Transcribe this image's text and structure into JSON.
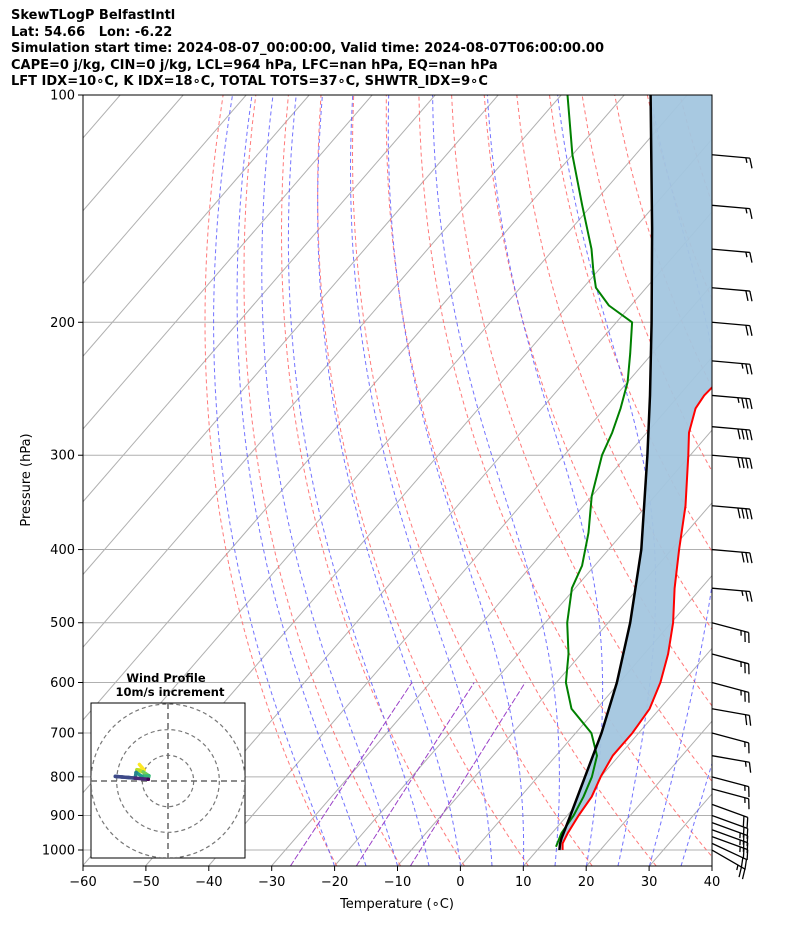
{
  "title_lines": [
    "SkewTLogP BelfastIntl",
    "Lat: 54.66   Lon: -6.22",
    "Simulation start time: 2024-08-07_00:00:00, Valid time: 2024-08-07T06:00:00.00",
    "CAPE=0 j/kg, CIN=0 j/kg, LCL=964 hPa, LFC=nan hPa, EQ=nan hPa",
    "LFT IDX=10∘C, K IDX=18∘C, TOTAL TOTS=37∘C, SHWTR_IDX=9∘C"
  ],
  "chart_data": {
    "type": "line",
    "subtype": "skew-t log-p",
    "xlabel": "Temperature (∘C)",
    "ylabel": "Pressure (hPa)",
    "xlim": [
      -60,
      40
    ],
    "ylim": [
      1050,
      100
    ],
    "yscale": "log",
    "xticks": [
      -60,
      -50,
      -40,
      -30,
      -20,
      -10,
      0,
      10,
      20,
      30,
      40
    ],
    "xtick_labels": [
      "−60",
      "−50",
      "−40",
      "−30",
      "−20",
      "−10",
      "0",
      "10",
      "20",
      "30",
      "40"
    ],
    "yticks": [
      1000,
      900,
      800,
      700,
      600,
      500,
      400,
      300,
      200,
      100
    ],
    "ytick_labels": [
      "1000",
      "900",
      "800",
      "700",
      "600",
      "500",
      "400",
      "300",
      "200",
      "100"
    ],
    "grid": true,
    "colors": {
      "temperature": "#ff0000",
      "dewpoint": "#008000",
      "parcel": "#000000",
      "shade": "#a3c6df",
      "dry_adiabats": "#ff6b6b",
      "moist_adiabats": "#5a5aff",
      "mixing_ratio": "#9b42c8",
      "isotherms": "#b0b0b0"
    },
    "series": [
      {
        "key": "temperature",
        "pressure": [
          1000,
          980,
          950,
          900,
          850,
          800,
          750,
          700,
          650,
          600,
          550,
          500,
          450,
          400,
          350,
          300,
          280,
          260,
          250,
          230,
          210,
          200,
          185,
          170,
          160,
          150,
          140,
          130,
          120,
          112,
          105,
          100
        ],
        "temp": [
          14.0,
          13.1,
          12.5,
          11.8,
          11.3,
          10.0,
          9.0,
          9.0,
          8.4,
          6.5,
          3.8,
          0.3,
          -4.2,
          -8.8,
          -13.8,
          -20.3,
          -23.3,
          -25.6,
          -26.0,
          -25.5,
          -25.0,
          -25.5,
          -26.5,
          -27.5,
          -28.5,
          -29.0,
          -30.0,
          -31.6,
          -33.0,
          -35.5,
          -37.0,
          -38.5
        ]
      },
      {
        "key": "dewpoint",
        "pressure": [
          990,
          950,
          900,
          850,
          800,
          750,
          700,
          650,
          600,
          550,
          500,
          450,
          420,
          380,
          340,
          300,
          280,
          260,
          240,
          220,
          200,
          190,
          180,
          170,
          160,
          140,
          120,
          100
        ],
        "temp": [
          12.5,
          11.5,
          11.0,
          10.0,
          8.6,
          6.5,
          2.5,
          -4.0,
          -8.5,
          -12.0,
          -16.5,
          -20.5,
          -22.0,
          -25.5,
          -30.0,
          -34.0,
          -35.5,
          -37.5,
          -40.0,
          -43.5,
          -47.5,
          -53.5,
          -58.0,
          -61.0,
          -64.0,
          -71.5,
          -80.0,
          -89.0
        ]
      },
      {
        "key": "parcel",
        "pressure": [
          1000,
          980,
          964,
          900,
          800,
          700,
          600,
          500,
          400,
          300,
          250,
          200,
          150,
          100
        ],
        "temp": [
          13.5,
          12.7,
          12.2,
          10.5,
          7.5,
          4.1,
          -0.4,
          -6.5,
          -14.8,
          -26.8,
          -34.6,
          -44.4,
          -57.3,
          -75.8
        ]
      }
    ],
    "barbs": {
      "pressure": [
        1000,
        980,
        960,
        940,
        920,
        900,
        870,
        830,
        800,
        750,
        700,
        650,
        600,
        550,
        500,
        450,
        400,
        350,
        300,
        275,
        250,
        225,
        200,
        180,
        160,
        140,
        120
      ],
      "speed_kt": [
        25,
        20,
        25,
        25,
        25,
        20,
        20,
        15,
        15,
        15,
        15,
        20,
        25,
        25,
        25,
        25,
        30,
        40,
        40,
        40,
        35,
        25,
        20,
        20,
        15,
        15,
        15
      ],
      "direction_deg": [
        300,
        295,
        290,
        290,
        290,
        290,
        290,
        285,
        285,
        280,
        285,
        280,
        285,
        285,
        285,
        275,
        275,
        275,
        275,
        275,
        275,
        275,
        275,
        275,
        275,
        275,
        275
      ]
    },
    "inset": {
      "title": "Wind Profile",
      "subtitle": "10m/s increment",
      "rings_ms": [
        10,
        20,
        30
      ],
      "range_ms": 30
    }
  }
}
